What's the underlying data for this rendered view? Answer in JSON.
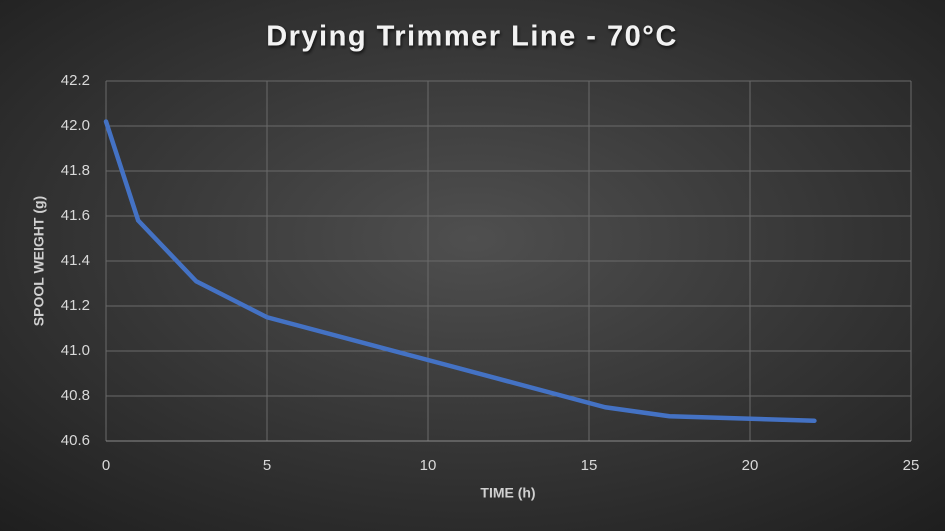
{
  "chart_data": {
    "type": "line",
    "title": "Drying Trimmer Line - 70°C",
    "x_label": "TIME (h)",
    "y_label": "SPOOL WEIGHT (g)",
    "x": [
      0,
      1,
      2.8,
      5,
      10,
      15.5,
      17.5,
      22
    ],
    "series": [
      {
        "color": "#4472c4",
        "values": [
          42.02,
          41.58,
          41.31,
          41.15,
          40.96,
          40.75,
          40.71,
          40.69
        ]
      }
    ],
    "xlim": [
      0,
      25
    ],
    "xticks": [
      0,
      5,
      10,
      15,
      20,
      25
    ],
    "ylim": [
      40.6,
      42.2
    ],
    "yticks": [
      40.6,
      40.8,
      {
        "value": 41,
        "label": "41.0"
      },
      41.2,
      41.4,
      41.6,
      41.8,
      {
        "value": 42,
        "label": "42.0"
      },
      42.2
    ],
    "grid": true
  }
}
